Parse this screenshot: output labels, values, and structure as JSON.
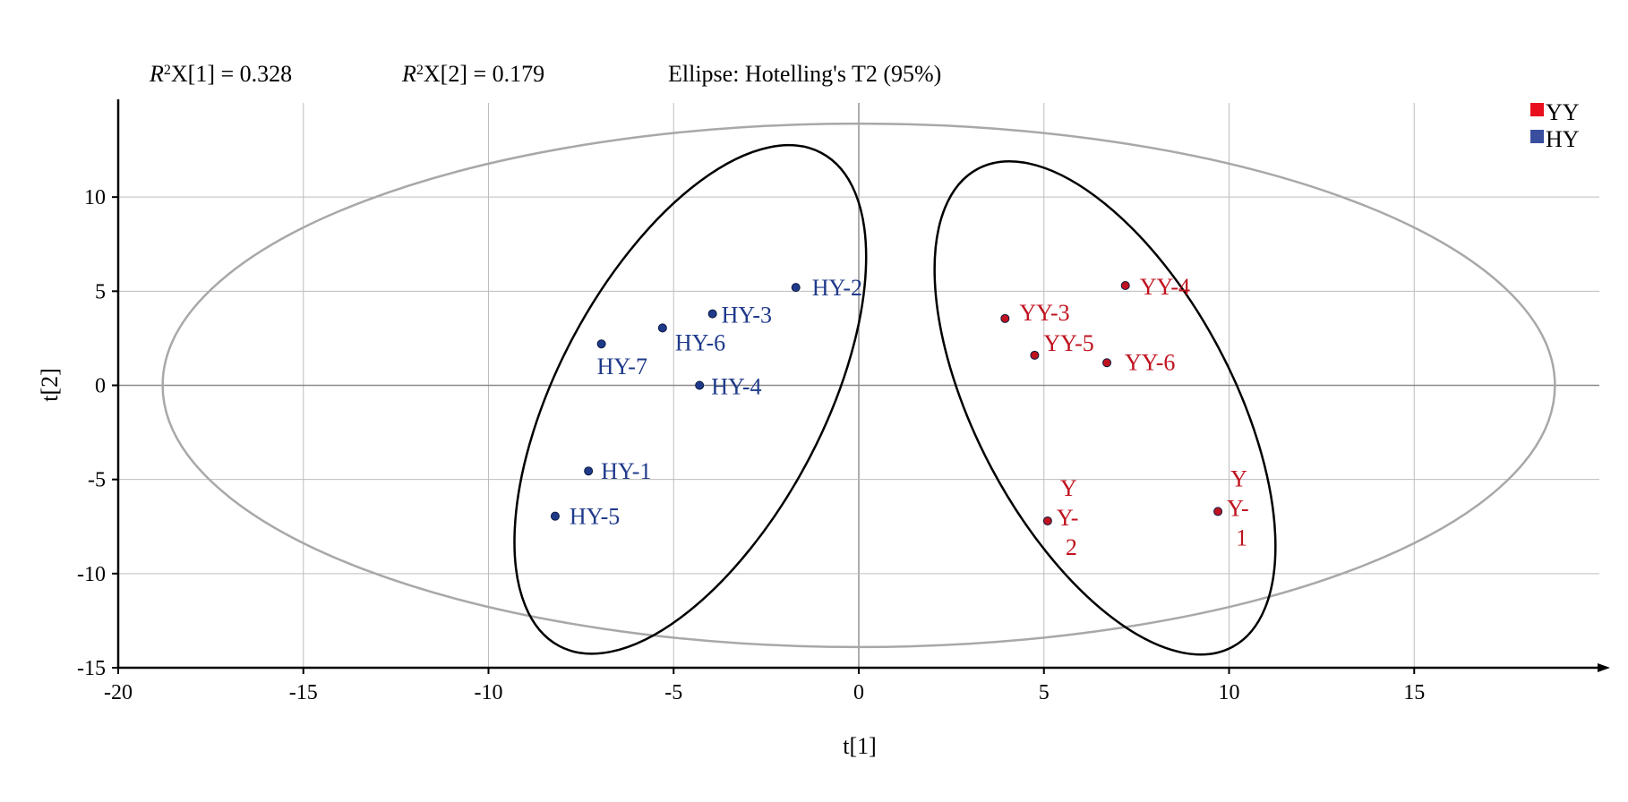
{
  "chart_data": {
    "type": "scatter",
    "header": {
      "r2x1": "X[1] = 0.328",
      "r2x2": "X[2] = 0.179",
      "r2_prefix": "R",
      "r2_sup": "2",
      "ellipse_note": "Ellipse: Hotelling's T2 (95%)"
    },
    "xlabel": "t[1]",
    "ylabel": "t[2]",
    "xlim": [
      -20,
      20
    ],
    "ylim": [
      -15,
      15
    ],
    "xticks": [
      -20,
      -15,
      -10,
      -5,
      0,
      5,
      10,
      15
    ],
    "yticks": [
      -15,
      -10,
      -5,
      0,
      5,
      10
    ],
    "grid": true,
    "legend_position": "top-right",
    "colors": {
      "YY": "#c0121f",
      "HY": "#1f3a8a",
      "legend_YY": "#e8101e",
      "legend_HY": "#3a4ea0",
      "grid": "#bdbdbd",
      "hotelling": "#a8a8a8"
    },
    "hotelling_ellipse": {
      "cx": 0,
      "cy": 0,
      "rx": 18.8,
      "ry": 13.9
    },
    "series": [
      {
        "name": "YY",
        "points": [
          {
            "label": "YY-4",
            "x": 7.2,
            "y": 5.3
          },
          {
            "label": "YY-3",
            "x": 3.95,
            "y": 3.55
          },
          {
            "label": "YY-5",
            "x": 4.75,
            "y": 1.6
          },
          {
            "label": "YY-6",
            "x": 6.7,
            "y": 1.2
          },
          {
            "label": "YY-2",
            "x": 5.1,
            "y": -7.2
          },
          {
            "label": "YY-1",
            "x": 9.7,
            "y": -6.7
          }
        ],
        "group_ellipse": {
          "cx": 6.65,
          "cy": -1.2,
          "rx": 9.7,
          "ry": 4.6,
          "angle_deg": 62
        }
      },
      {
        "name": "HY",
        "points": [
          {
            "label": "HY-2",
            "x": -1.7,
            "y": 5.2
          },
          {
            "label": "HY-3",
            "x": -3.95,
            "y": 3.8
          },
          {
            "label": "HY-6",
            "x": -5.3,
            "y": 3.05
          },
          {
            "label": "HY-7",
            "x": -6.95,
            "y": 2.2
          },
          {
            "label": "HY-4",
            "x": -4.3,
            "y": 0
          },
          {
            "label": "HY-1",
            "x": -7.3,
            "y": -4.55
          },
          {
            "label": "HY-5",
            "x": -8.2,
            "y": -6.95
          }
        ],
        "group_ellipse": {
          "cx": -4.55,
          "cy": -0.75,
          "rx": 10.0,
          "ry": 4.75,
          "angle_deg": -62
        }
      }
    ]
  }
}
